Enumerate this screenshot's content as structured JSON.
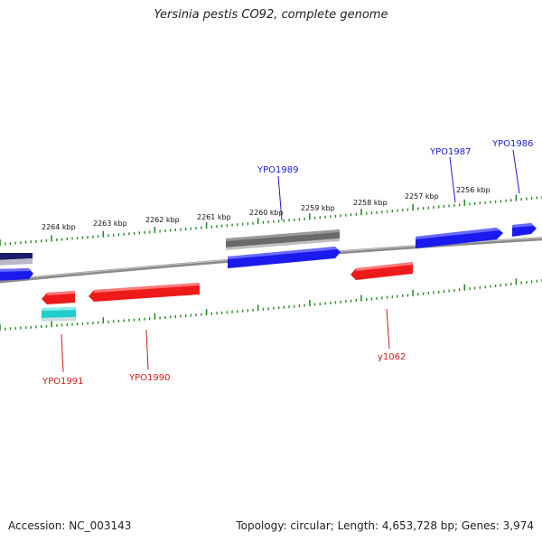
{
  "title": "Yersinia pestis CO92, complete genome",
  "footer": {
    "accession": "Accession: NC_003143",
    "summary": "Topology: circular; Length: 4,653,728 bp; Genes: 3,974"
  },
  "colors": {
    "forward_gene": "#1a1aee",
    "reverse_gene": "#ee1a1a",
    "label_forward": "#1a1acc",
    "label_reverse": "#cc1a1a",
    "ruler_tick": "#2a8a2a",
    "backbone": "#8a8a8a",
    "gray_feature": "#6a6a6a",
    "cyan_feature": "#22cccc",
    "navy_feature": "#1a1a66"
  },
  "ruler_labels": [
    "2264 kbp",
    "2263 kbp",
    "2262 kbp",
    "2261 kbp",
    "2260 kbp",
    "2259 kbp",
    "2258 kbp",
    "2257 kbp",
    "2256 kbp"
  ],
  "gene_labels": {
    "YPO1986": "YPO1986",
    "YPO1987": "YPO1987",
    "YPO1989": "YPO1989",
    "YPO1990": "YPO1990",
    "YPO1991": "YPO1991",
    "y1062": "y1062"
  }
}
